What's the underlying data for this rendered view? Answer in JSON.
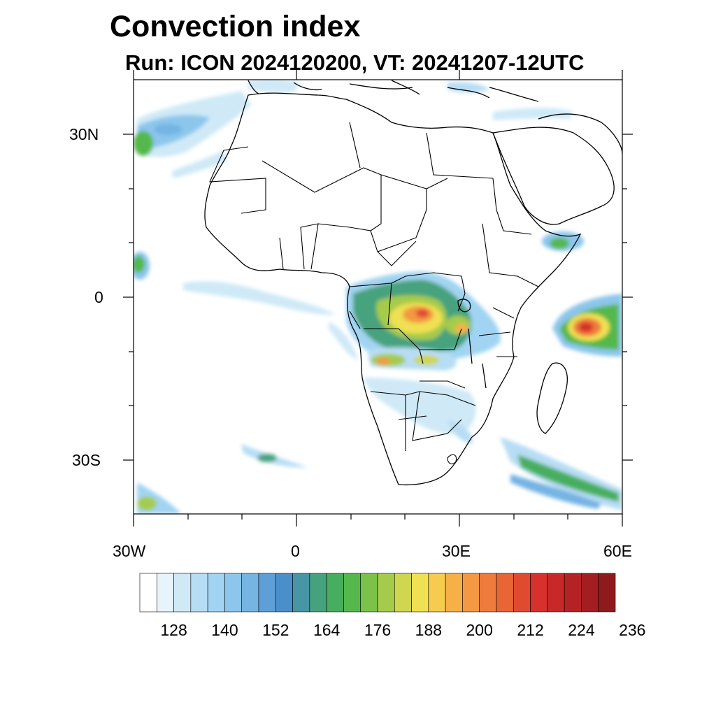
{
  "title": "Convection index",
  "subtitle": "Run: ICON 2024120200,  VT: 20241207-12UTC",
  "lat_labels": [
    "30N",
    "0",
    "30S"
  ],
  "lon_labels": [
    "30W",
    "0",
    "30E",
    "60E"
  ],
  "colorbar": {
    "colors": [
      "#ffffff",
      "#e8f4fb",
      "#cfe9f7",
      "#b7ddf4",
      "#a1d4f2",
      "#8cc6ec",
      "#75b4e3",
      "#5e9fd8",
      "#4a8fc9",
      "#4795a5",
      "#46a27e",
      "#46ae5e",
      "#54b84c",
      "#7cc24a",
      "#a6cb4c",
      "#cfd64f",
      "#f0e053",
      "#f7cb4e",
      "#f6b048",
      "#f39843",
      "#ee7b3c",
      "#e86536",
      "#e04a31",
      "#d6312c",
      "#c92828",
      "#b52226",
      "#a41d23",
      "#8e1a1e"
    ],
    "tick_labels": [
      "128",
      "140",
      "152",
      "164",
      "176",
      "188",
      "200",
      "212",
      "224",
      "236"
    ]
  }
}
